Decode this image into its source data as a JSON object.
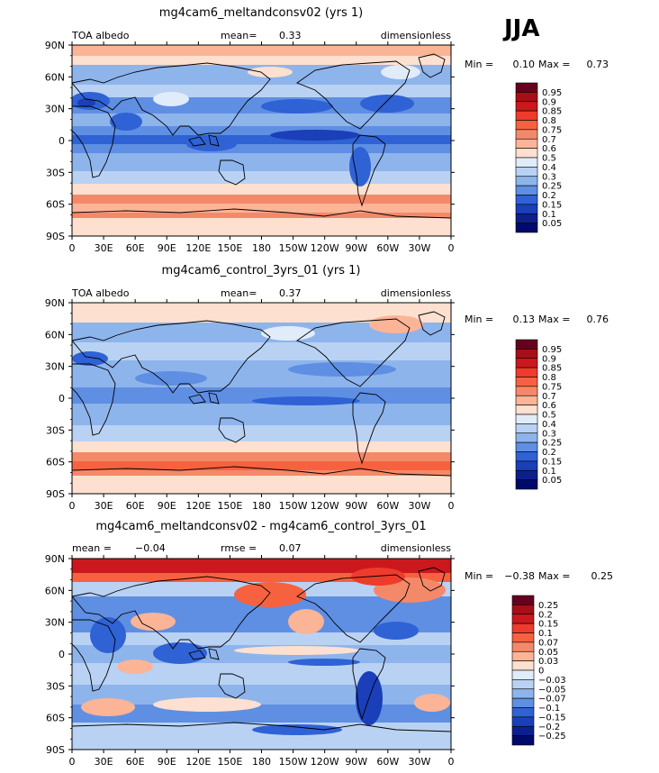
{
  "season": "JJA",
  "x_ticks": [
    "0",
    "30E",
    "60E",
    "90E",
    "120E",
    "150E",
    "180",
    "150W",
    "120W",
    "90W",
    "60W",
    "30W",
    "0"
  ],
  "y_ticks": [
    "90N",
    "60N",
    "30N",
    "0",
    "30S",
    "60S",
    "90S"
  ],
  "min_label": "Min =",
  "max_label": "Max =",
  "mean_label": "mean=",
  "rmse_label": "rmse =",
  "panels": [
    {
      "title": "mg4cam6_meltandconsv02 (yrs 1)",
      "left": "TOA albedo",
      "mean_value": "0.33",
      "right": "dimensionless",
      "min_value": "0.10",
      "max_value": "0.73",
      "levels": [
        "0.95",
        "0.9",
        "0.85",
        "0.8",
        "0.75",
        "0.7",
        "0.6",
        "0.5",
        "0.4",
        "0.3",
        "0.25",
        "0.2",
        "0.15",
        "0.1",
        "0.05"
      ]
    },
    {
      "title": "mg4cam6_control_3yrs_01 (yrs 1)",
      "left": "TOA albedo",
      "mean_value": "0.37",
      "right": "dimensionless",
      "min_value": "0.13",
      "max_value": "0.76",
      "levels": [
        "0.95",
        "0.9",
        "0.85",
        "0.8",
        "0.75",
        "0.7",
        "0.6",
        "0.5",
        "0.4",
        "0.3",
        "0.25",
        "0.2",
        "0.15",
        "0.1",
        "0.05"
      ]
    },
    {
      "title": "mg4cam6_meltandconsv02 - mg4cam6_control_3yrs_01",
      "mean_text": "mean =",
      "mean_value": "−0.04",
      "rmse_value": "0.07",
      "right": "dimensionless",
      "min_value": "−0.38",
      "max_value": "0.25",
      "levels": [
        "0.25",
        "0.2",
        "0.15",
        "0.1",
        "0.07",
        "0.05",
        "0.03",
        "0",
        "−0.03",
        "−0.05",
        "−0.07",
        "−0.1",
        "−0.15",
        "−0.2",
        "−0.25"
      ]
    }
  ],
  "colors": {
    "scale": [
      "#67001f",
      "#a50f15",
      "#cb181d",
      "#ef3b2c",
      "#f6623f",
      "#f4896a",
      "#fbb496",
      "#fde0cf",
      "#e1ecfa",
      "#b9d2f3",
      "#8eb4ec",
      "#5f8fe3",
      "#2f62d4",
      "#1a3fb8",
      "#0c1f8c",
      "#000a6a"
    ]
  }
}
